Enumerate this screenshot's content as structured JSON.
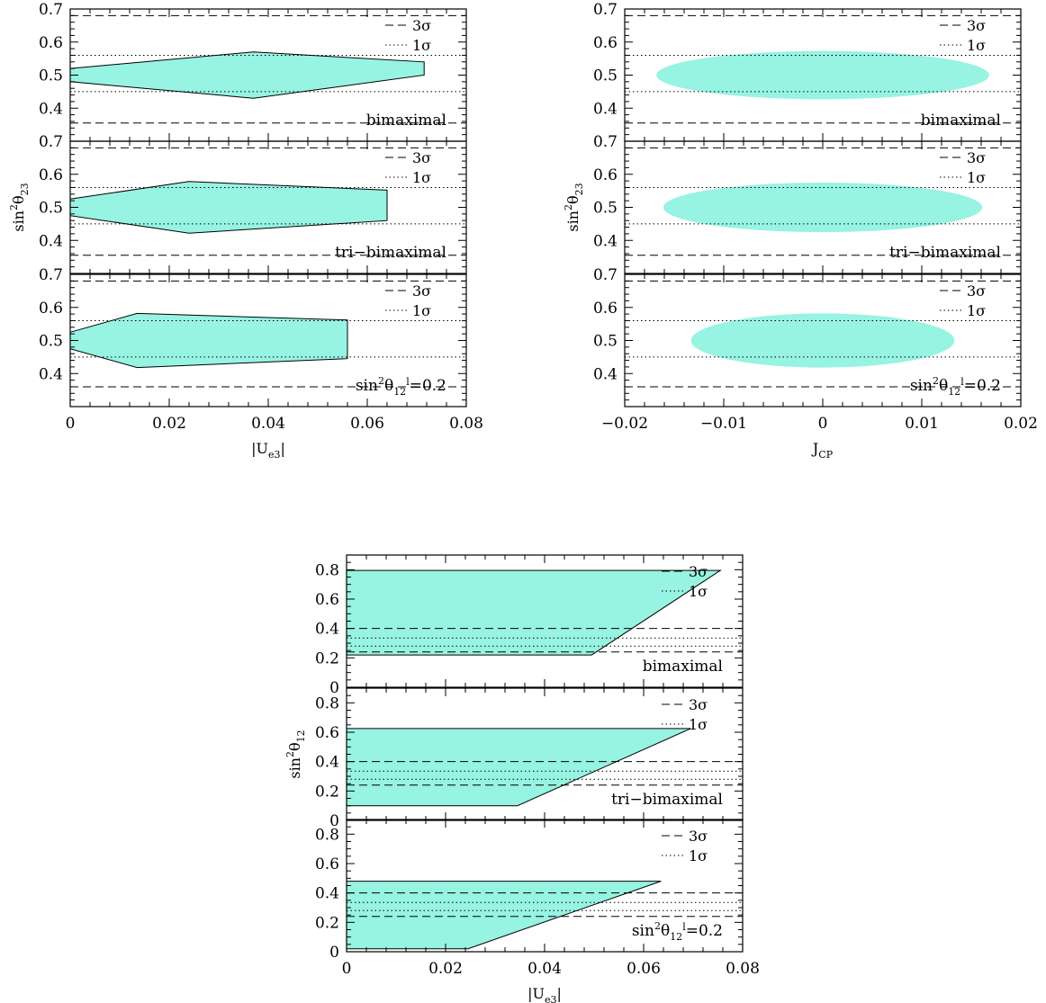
{
  "legend": {
    "sigma3": "3σ",
    "sigma1": "1σ"
  },
  "colors": {
    "fill": "#97f3e2",
    "line": "#000000",
    "background": "#ffffff"
  },
  "chart_data": [
    {
      "id": "ue3-vs-s23",
      "type": "area",
      "xlabel": "|U",
      "xlabel_sub": "e3",
      "xlabel_end": "|",
      "ylabel": "sin",
      "ylabel_sup": "2",
      "ylabel_var": "θ",
      "ylabel_sub": "23",
      "xlim": [
        0,
        0.08
      ],
      "ylim": [
        0.3,
        0.7
      ],
      "x_ticks": [
        "0",
        "0.02",
        "0.04",
        "0.06",
        "0.08"
      ],
      "y_ticks": [
        "0.4",
        "0.5",
        "0.6",
        "0.7"
      ],
      "panels": [
        {
          "label": "bimaximal",
          "region": [
            [
              0,
              0.52
            ],
            [
              0.037,
              0.57
            ],
            [
              0.0715,
              0.54
            ],
            [
              0.0715,
              0.5
            ],
            [
              0.037,
              0.43
            ],
            [
              0,
              0.48
            ]
          ],
          "lines": {
            "dash": [
              0.355,
              0.68
            ],
            "dot": [
              0.45,
              0.56
            ]
          }
        },
        {
          "label": "tri−bimaximal",
          "region": [
            [
              0,
              0.525
            ],
            [
              0.024,
              0.578
            ],
            [
              0.064,
              0.552
            ],
            [
              0.064,
              0.46
            ],
            [
              0.024,
              0.422
            ],
            [
              0,
              0.475
            ]
          ],
          "lines": {
            "dash": [
              0.355,
              0.68
            ],
            "dot": [
              0.45,
              0.56
            ]
          }
        },
        {
          "label": "sin",
          "label_sup": "2",
          "label_var": "θ",
          "label_sub": "12",
          "label_sup2": "l",
          "label_val": "=0.2",
          "region": [
            [
              0,
              0.525
            ],
            [
              0.0135,
              0.582
            ],
            [
              0.056,
              0.562
            ],
            [
              0.056,
              0.445
            ],
            [
              0.0135,
              0.418
            ],
            [
              0,
              0.475
            ]
          ],
          "lines": {
            "dash": [
              0.36,
              0.68
            ],
            "dot": [
              0.45,
              0.56
            ]
          }
        }
      ]
    },
    {
      "id": "jcp-vs-s23",
      "type": "area",
      "xlabel": "J",
      "xlabel_sub": "CP",
      "ylabel": "sin",
      "ylabel_sup": "2",
      "ylabel_var": "θ",
      "ylabel_sub": "23",
      "xlim": [
        -0.02,
        0.02
      ],
      "ylim": [
        0.3,
        0.7
      ],
      "x_ticks": [
        "−0.02",
        "−0.01",
        "0",
        "0.01",
        "0.02"
      ],
      "y_ticks": [
        "0.4",
        "0.5",
        "0.6",
        "0.7"
      ],
      "panels": [
        {
          "label": "bimaximal",
          "ellipse": {
            "cx": 0,
            "cy": 0.5,
            "rx": 0.0168,
            "ry": 0.073
          },
          "lines": {
            "dash": [
              0.355,
              0.68
            ],
            "dot": [
              0.45,
              0.56
            ]
          }
        },
        {
          "label": "tri−bimaximal",
          "ellipse": {
            "cx": 0,
            "cy": 0.5,
            "rx": 0.0161,
            "ry": 0.075
          },
          "lines": {
            "dash": [
              0.355,
              0.68
            ],
            "dot": [
              0.45,
              0.56
            ]
          }
        },
        {
          "label": "sin",
          "label_sup": "2",
          "label_var": "θ",
          "label_sub": "12",
          "label_sup2": "l",
          "label_val": "=0.2",
          "ellipse": {
            "cx": 0,
            "cy": 0.5,
            "rx": 0.0133,
            "ry": 0.082
          },
          "lines": {
            "dash": [
              0.36,
              0.68
            ],
            "dot": [
              0.45,
              0.56
            ]
          }
        }
      ]
    },
    {
      "id": "ue3-vs-s12",
      "type": "area",
      "xlabel": "|U",
      "xlabel_sub": "e3",
      "xlabel_end": "|",
      "ylabel": "sin",
      "ylabel_sup": "2",
      "ylabel_var": "θ",
      "ylabel_sub": "12",
      "xlim": [
        0,
        0.08
      ],
      "ylim": [
        0,
        0.9
      ],
      "x_ticks": [
        "0",
        "0.02",
        "0.04",
        "0.06",
        "0.08"
      ],
      "y_ticks": [
        "0",
        "0.2",
        "0.4",
        "0.6",
        "0.8"
      ],
      "panels": [
        {
          "label": "bimaximal",
          "region": [
            [
              0,
              0.795
            ],
            [
              0.0755,
              0.795
            ],
            [
              0.0495,
              0.22
            ],
            [
              0,
              0.22
            ]
          ],
          "lines": {
            "dash": [
              0.24,
              0.4
            ],
            "dot": [
              0.28,
              0.335
            ]
          }
        },
        {
          "label": "tri−bimaximal",
          "region": [
            [
              0,
              0.625
            ],
            [
              0.0695,
              0.625
            ],
            [
              0.0345,
              0.1
            ],
            [
              0,
              0.1
            ]
          ],
          "lines": {
            "dash": [
              0.24,
              0.4
            ],
            "dot": [
              0.28,
              0.335
            ]
          }
        },
        {
          "label": "sin",
          "label_sup": "2",
          "label_var": "θ",
          "label_sub": "12",
          "label_sup2": "l",
          "label_val": "=0.2",
          "region": [
            [
              0,
              0.48
            ],
            [
              0.0635,
              0.48
            ],
            [
              0.0245,
              0.02
            ],
            [
              0,
              0.02
            ]
          ],
          "lines": {
            "dash": [
              0.24,
              0.4
            ],
            "dot": [
              0.28,
              0.335
            ]
          }
        }
      ]
    }
  ]
}
